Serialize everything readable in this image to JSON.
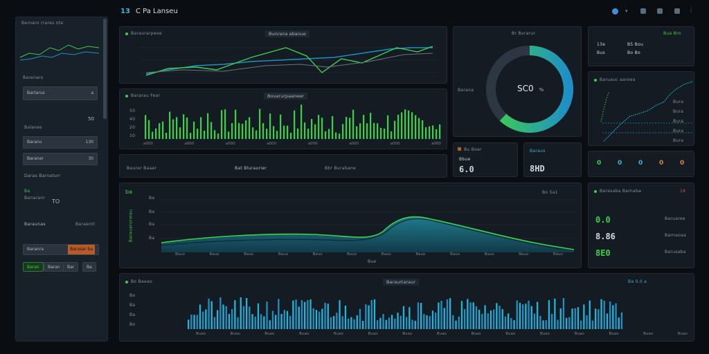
{
  "header": {
    "logo": "13",
    "title": "C Pa Lanseu",
    "icons": [
      "globe-icon",
      "chevron-down-icon",
      "info-icon",
      "camera-icon",
      "settings-icon",
      "more-icon"
    ]
  },
  "sidebar": {
    "title": "Bernaro rrares nte",
    "section1": "Barenaro",
    "btn1": {
      "label": "Bartarus",
      "value": "a"
    },
    "small_value": "50",
    "section2": "Balanes",
    "row1": {
      "label": "Baranu",
      "value": "130"
    },
    "row2": {
      "label": "Baraner",
      "value": "30"
    },
    "green_heading": "Daras  Barnaturr",
    "green_sub": "Ba",
    "stat_label": "Banaranr",
    "stat_value": "TO",
    "section3": "Baraunas",
    "section3_right": "Baraernt",
    "orange_row": {
      "label": "Baranra",
      "value": "Barusar ba"
    },
    "bottom_buttons": [
      "Baran",
      "Baran",
      "Bar",
      "Ba"
    ]
  },
  "line_chart": {
    "title": "Bunrana abanue",
    "label": "Baraurarpeoe"
  },
  "bar_chart_top": {
    "title": "Bararau Fear",
    "label": "Bouarurpaaneer",
    "yticks": [
      "50",
      "40",
      "20",
      "10"
    ],
    "xticks": [
      "a000",
      "a000",
      "a000",
      "a000",
      "a000",
      "a000",
      "a000",
      "a000"
    ]
  },
  "stat_strip": {
    "items": [
      "Baurer  Baaer",
      "Bat Bluraurier",
      "Bbr Burabane"
    ]
  },
  "donut": {
    "title": "Br Burarur",
    "left_label": "Barana",
    "center": "SC0",
    "center_unit": "%",
    "pct": 0.62
  },
  "kpi_a": {
    "label": "Bu Boer",
    "unit": "Bbue",
    "value": "6.0"
  },
  "kpi_b": {
    "label": "Baraus",
    "value": "8HD"
  },
  "mini": {
    "title": "Bua  Bro",
    "row1": [
      "13e",
      "B5 Bou"
    ],
    "row2": [
      "Bus",
      "Bo Bo"
    ]
  },
  "curve_chart": {
    "title": "Baruauc aaroea",
    "yticks": [
      "Bura",
      "Bura",
      "Bura",
      "Bura",
      "Bura"
    ]
  },
  "icon_row": [
    "0",
    "0",
    "0",
    "0",
    "0"
  ],
  "area_chart": {
    "legend": "Bo  5a1",
    "yticks": [
      "Ba",
      "Ba",
      "Ba",
      "Ba"
    ],
    "xticks": [
      "Bauo",
      "Bauo",
      "Bauo",
      "Baua",
      "Bauo",
      "Bauo",
      "Bauo",
      "Bauo",
      "Bauo",
      "Bauo",
      "Bauo",
      "Bauo"
    ],
    "xlabel": "Bue",
    "ylabel": "Barauarurorau",
    "legend_icon": "ba"
  },
  "side_stats": {
    "title": "Barasaba Barnaba",
    "badge": "18",
    "v1": "0.0",
    "v1_label": "Baruaree",
    "v2": "8.86",
    "v2_label": "Barnaoaa",
    "v3": "8E0",
    "v3_label": "Barusaba"
  },
  "bottom_chart": {
    "title": "Bo Baeao",
    "label": "Baraurtaraur",
    "legend": "Ba  0.0 a",
    "xticks": [
      "Buao",
      "Buao",
      "Buao",
      "Buao",
      "Buao",
      "Buao",
      "Buao",
      "Buao",
      "Buao",
      "Buao",
      "Buao",
      "Buao",
      "Buao",
      "Buao",
      "Buao"
    ],
    "yticks": [
      "Bo",
      "Ba",
      "Ba",
      "Bo"
    ]
  },
  "colors": {
    "green": "#3ecf4a",
    "blue": "#1f8fc7",
    "cyan": "#20b8d8",
    "orange": "#b65a2a"
  }
}
